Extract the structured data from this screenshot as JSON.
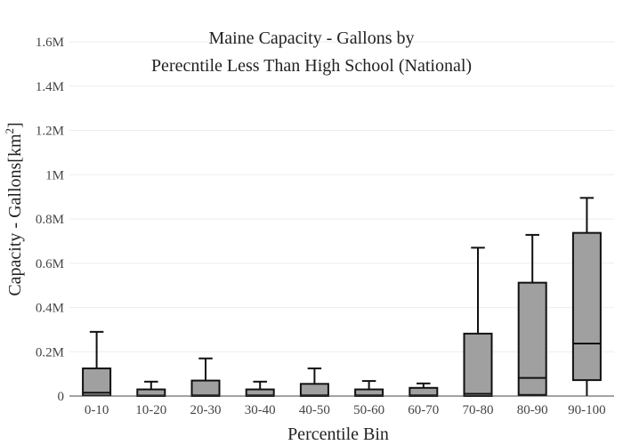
{
  "chart_data": {
    "type": "box",
    "title_lines": [
      "Maine Capacity - Gallons by",
      "Perecntile Less Than High School (National)"
    ],
    "xlabel": "Percentile Bin",
    "ylabel": "Capacity - Gallons",
    "ylabel_unit_base": "[km",
    "ylabel_unit_sup": "2",
    "ylabel_unit_close": "]",
    "ylim": [
      0,
      1600000
    ],
    "yticks": [
      {
        "value": 0,
        "label": "0"
      },
      {
        "value": 200000,
        "label": "0.2M"
      },
      {
        "value": 400000,
        "label": "0.4M"
      },
      {
        "value": 600000,
        "label": "0.6M"
      },
      {
        "value": 800000,
        "label": "0.8M"
      },
      {
        "value": 1000000,
        "label": "1M"
      },
      {
        "value": 1200000,
        "label": "1.2M"
      },
      {
        "value": 1400000,
        "label": "1.4M"
      },
      {
        "value": 1600000,
        "label": "1.6M"
      }
    ],
    "grid": true,
    "box_color": "#a0a0a0",
    "line_color": "#111111",
    "categories": [
      "0-10",
      "10-20",
      "20-30",
      "30-40",
      "40-50",
      "50-60",
      "60-70",
      "70-80",
      "80-90",
      "90-100"
    ],
    "boxes": [
      {
        "min": 0,
        "q1": 2000,
        "median": 15000,
        "q3": 125000,
        "max": 290000
      },
      {
        "min": 0,
        "q1": 0,
        "median": 2000,
        "q3": 30000,
        "max": 65000
      },
      {
        "min": 0,
        "q1": 0,
        "median": 3000,
        "q3": 70000,
        "max": 170000
      },
      {
        "min": 0,
        "q1": 0,
        "median": 3000,
        "q3": 30000,
        "max": 65000
      },
      {
        "min": 0,
        "q1": 0,
        "median": 3000,
        "q3": 55000,
        "max": 125000
      },
      {
        "min": 0,
        "q1": 0,
        "median": 3000,
        "q3": 30000,
        "max": 68000
      },
      {
        "min": 0,
        "q1": 0,
        "median": 3000,
        "q3": 37000,
        "max": 57000
      },
      {
        "min": 0,
        "q1": 0,
        "median": 10000,
        "q3": 282000,
        "max": 670000
      },
      {
        "min": 0,
        "q1": 5000,
        "median": 82000,
        "q3": 512000,
        "max": 728000
      },
      {
        "min": 0,
        "q1": 72000,
        "median": 237000,
        "q3": 737000,
        "max": 895000
      }
    ]
  }
}
